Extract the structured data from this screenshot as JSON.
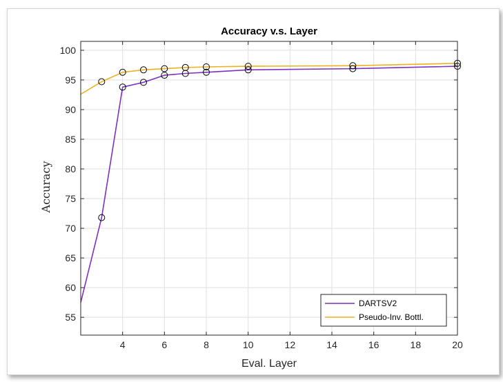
{
  "chart_data": {
    "type": "line",
    "title": "Accuracy v.s. Layer",
    "xlabel": "Eval. Layer",
    "ylabel": "Accuracy",
    "xlim": [
      2,
      20
    ],
    "ylim": [
      52,
      101.5
    ],
    "xticks": [
      4,
      6,
      8,
      10,
      12,
      14,
      16,
      18,
      20
    ],
    "yticks": [
      55,
      60,
      65,
      70,
      75,
      80,
      85,
      90,
      95,
      100
    ],
    "grid": true,
    "legend_position": "bottom-right",
    "series": [
      {
        "name": "DARTSV2",
        "color": "#7e2fbe",
        "line_x": [
          2,
          3,
          4,
          5,
          6,
          7,
          8,
          10,
          15,
          20
        ],
        "line_y": [
          57.5,
          71.8,
          93.8,
          94.6,
          95.8,
          96.1,
          96.3,
          96.7,
          96.9,
          97.3
        ],
        "marker_x": [
          3,
          4,
          5,
          6,
          7,
          8,
          10,
          15,
          20
        ],
        "marker_y": [
          71.8,
          93.8,
          94.6,
          95.8,
          96.1,
          96.3,
          96.7,
          96.9,
          97.3
        ]
      },
      {
        "name": "Pseudo-Inv. Bottl.",
        "color": "#edb120",
        "line_x": [
          2,
          3,
          4,
          5,
          6,
          7,
          8,
          10,
          15,
          20
        ],
        "line_y": [
          92.6,
          94.7,
          96.3,
          96.7,
          96.9,
          97.1,
          97.2,
          97.3,
          97.4,
          97.8
        ],
        "marker_x": [
          3,
          4,
          5,
          6,
          7,
          8,
          10,
          15,
          20
        ],
        "marker_y": [
          94.7,
          96.3,
          96.7,
          96.9,
          97.1,
          97.2,
          97.3,
          97.4,
          97.8
        ]
      }
    ]
  }
}
